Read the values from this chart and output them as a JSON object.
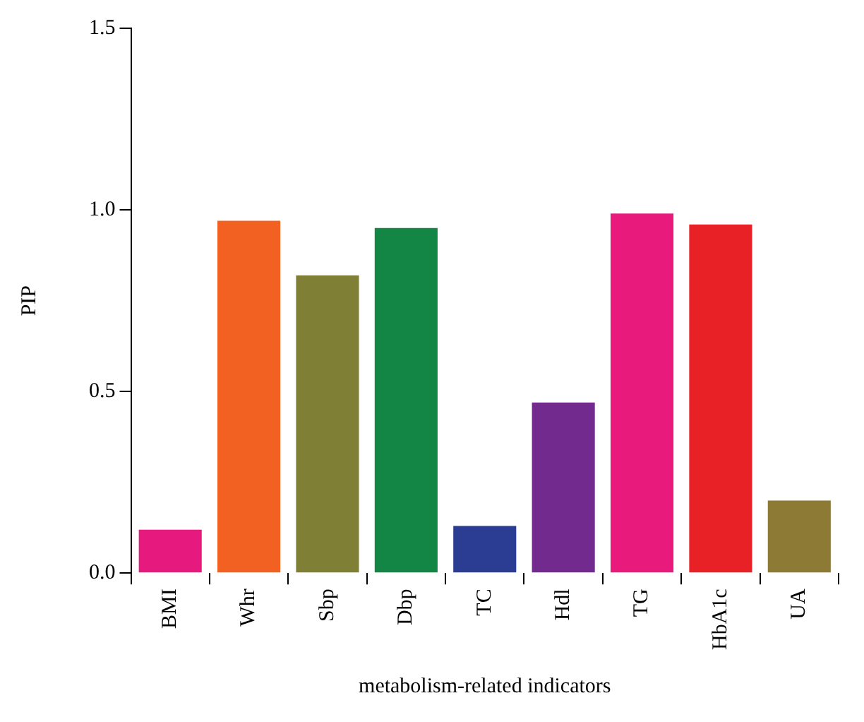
{
  "chart_data": {
    "type": "bar",
    "categories": [
      "BMI",
      "Whr",
      "Sbp",
      "Dbp",
      "TC",
      "Hdl",
      "TG",
      "HbA1c",
      "UA"
    ],
    "values": [
      0.12,
      0.97,
      0.82,
      0.95,
      0.13,
      0.47,
      0.99,
      0.96,
      0.2
    ],
    "colors": [
      "#e6197f",
      "#f26122",
      "#7f7f35",
      "#138544",
      "#2a3d92",
      "#722a8e",
      "#e81b7c",
      "#e82127",
      "#8c7a35"
    ],
    "xlabel": "metabolism-related indicators",
    "ylabel": "PIP",
    "ylim": [
      0,
      1.5
    ],
    "yticks": [
      {
        "value": 0,
        "label": "0.0"
      },
      0.5,
      {
        "value": 1,
        "label": "1.0"
      },
      1.5
    ],
    "grid": false,
    "legend": false
  }
}
